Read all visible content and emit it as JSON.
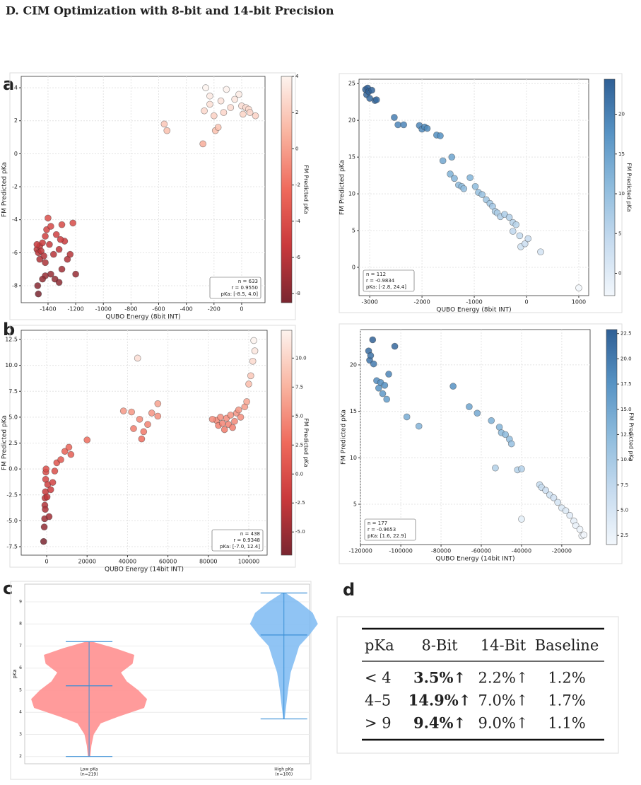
{
  "heading": "D.   CIM Optimization with 8-bit and 14-bit Precision",
  "panel_labels": [
    "a",
    "b",
    "c",
    "d"
  ],
  "chart_data": [
    {
      "type": "scatter",
      "xlabel": "QUBO Energy (8bit INT)",
      "ylabel": "FM Predicted pKa",
      "x": [
        -1480,
        -1470,
        -1460,
        -1450,
        -1440,
        -1430,
        -1420,
        -1410,
        -1400,
        -1390,
        -1380,
        -1360,
        -1340,
        -1320,
        -1300,
        -1280,
        -1260,
        -1240,
        -1220,
        -1200,
        -1300,
        -1350,
        -1380,
        -1420,
        -1470,
        -1475,
        -1440,
        -1310,
        -1460,
        -1480,
        -1420,
        -1320,
        -560,
        -540,
        -280,
        -270,
        -260,
        -230,
        -200,
        -190,
        -170,
        -150,
        -130,
        -110,
        -80,
        -50,
        -20,
        0,
        10,
        30,
        50,
        60,
        100,
        -230
      ],
      "values": [
        -5.8,
        -6.0,
        -5.6,
        -5.9,
        -5.4,
        -6.2,
        -5.0,
        -4.6,
        -3.9,
        -5.5,
        -4.4,
        -6.1,
        -4.9,
        -5.8,
        -4.3,
        -5.3,
        -6.4,
        -6.1,
        -4.2,
        -7.3,
        -7.0,
        -7.6,
        -7.3,
        -7.4,
        -8.5,
        -8.0,
        -7.6,
        -5.2,
        -6.4,
        -5.5,
        -6.6,
        -7.8,
        1.8,
        1.4,
        0.6,
        2.6,
        4.0,
        3.0,
        2.3,
        1.4,
        1.6,
        3.2,
        2.5,
        3.9,
        2.8,
        3.3,
        3.6,
        2.9,
        2.4,
        2.8,
        2.7,
        2.5,
        2.3,
        3.5
      ],
      "xlim": [
        -1594,
        169
      ],
      "ylim": [
        -9.03,
        4.69
      ],
      "xticks": [
        -1400,
        -1200,
        -1000,
        -800,
        -600,
        -400,
        -200,
        0
      ],
      "yticks": [
        -8,
        -6,
        -4,
        -2,
        0,
        2,
        4
      ],
      "grid": true,
      "colormap": [
        "#7a2630",
        "#c9393c",
        "#ef6a5c",
        "#f9b4a0",
        "#fdf3ee"
      ],
      "colorbar": {
        "label": "FM Predicted pKa",
        "lim": [
          -8.5,
          4.0
        ],
        "ticks": [
          -8,
          -6,
          -4,
          -2,
          0,
          2,
          4
        ]
      },
      "annotation": [
        "n = 633",
        "r = 0.9550",
        "pKa: [-8.5, 4.0]"
      ],
      "annotation_corner": "lower right"
    },
    {
      "type": "scatter",
      "xlabel": "QUBO Energy (8bit INT)",
      "ylabel": "FM Predicted pKa",
      "x": [
        -3080,
        -3060,
        -3040,
        -3020,
        -3000,
        -2960,
        -2900,
        -2870,
        -2530,
        -2460,
        -2350,
        -2050,
        -2000,
        -1950,
        -1900,
        -1720,
        -1650,
        -1600,
        -1460,
        -1430,
        -1380,
        -1300,
        -1240,
        -1200,
        -1080,
        -980,
        -920,
        -850,
        -770,
        -700,
        -650,
        -600,
        -560,
        -500,
        -420,
        -330,
        -260,
        -200,
        -260,
        -130,
        -110,
        -30,
        30,
        270,
        1000
      ],
      "values": [
        24.2,
        23.5,
        24.4,
        23.9,
        23.0,
        24.1,
        22.7,
        22.8,
        20.4,
        19.4,
        19.4,
        19.3,
        18.8,
        19.1,
        18.9,
        18.0,
        17.9,
        14.5,
        12.7,
        15.0,
        12.1,
        11.2,
        11.0,
        10.7,
        12.2,
        11.0,
        10.2,
        9.9,
        9.2,
        8.7,
        8.3,
        7.6,
        7.4,
        6.9,
        7.2,
        6.8,
        6.1,
        5.8,
        4.9,
        4.3,
        2.8,
        3.2,
        3.9,
        2.1,
        -2.8
      ],
      "xlim": [
        -3205,
        1190
      ],
      "ylim": [
        -3.85,
        25.6
      ],
      "xticks": [
        -3000,
        -2000,
        -1000,
        0,
        1000
      ],
      "yticks": [
        0,
        5,
        10,
        15,
        20,
        25
      ],
      "grid": true,
      "colormap": [
        "#f2f7fc",
        "#c6dbef",
        "#8fbcdd",
        "#5793c4",
        "#2f5f95"
      ],
      "colorbar": {
        "label": "FM Predicted pKa",
        "lim": [
          -2.8,
          24.4
        ],
        "ticks": [
          0,
          5,
          10,
          15,
          20
        ]
      },
      "annotation": [
        "n = 112",
        "r = -0.9834",
        "pKa: [-2.8, 24.4]"
      ],
      "annotation_corner": "lower left"
    },
    {
      "type": "scatter",
      "xlabel": "QUBO Energy (14bit INT)",
      "ylabel": "FM Predicted pKa",
      "x": [
        -1500,
        -1200,
        -1000,
        -900,
        -800,
        -700,
        -600,
        -500,
        -400,
        -300,
        200,
        500,
        1200,
        2000,
        3000,
        4000,
        5000,
        7000,
        9000,
        11000,
        12000,
        20000,
        38000,
        42000,
        43000,
        45000,
        46000,
        47000,
        48000,
        50000,
        52000,
        55000,
        55000,
        84000,
        85000,
        86000,
        87000,
        88000,
        89000,
        90000,
        91000,
        92000,
        93000,
        94000,
        95000,
        96000,
        98000,
        99000,
        100000,
        101000,
        102000,
        103000,
        102500,
        82000
      ],
      "values": [
        -7.0,
        -5.6,
        -4.8,
        -3.5,
        -2.8,
        -3.9,
        -2.2,
        -1.0,
        -0.3,
        0.0,
        -2.7,
        -1.5,
        -4.6,
        -2.0,
        -1.3,
        -0.2,
        0.6,
        0.9,
        1.7,
        2.1,
        1.4,
        2.8,
        5.6,
        5.5,
        3.9,
        10.7,
        4.8,
        2.9,
        3.6,
        4.3,
        5.4,
        5.1,
        6.3,
        4.7,
        4.2,
        5.0,
        4.4,
        3.8,
        4.9,
        4.3,
        5.2,
        4.0,
        4.6,
        5.4,
        5.7,
        5.0,
        6.0,
        6.5,
        8.2,
        9.0,
        10.4,
        11.4,
        12.4,
        4.8
      ],
      "xlim": [
        -12600,
        109100
      ],
      "ylim": [
        -8.32,
        13.39
      ],
      "xticks": [
        0,
        20000,
        40000,
        60000,
        80000,
        100000
      ],
      "yticks": [
        {
          "value": -7.5,
          "label": "-7.5"
        },
        {
          "value": -5,
          "label": "-5.0"
        },
        {
          "value": -2.5,
          "label": "-2.5"
        },
        {
          "value": 0,
          "label": "0.0"
        },
        {
          "value": 2.5,
          "label": "2.5"
        },
        {
          "value": 5,
          "label": "5.0"
        },
        {
          "value": 7.5,
          "label": "7.5"
        },
        {
          "value": 10,
          "label": "10.0"
        },
        {
          "value": 12.5,
          "label": "12.5"
        }
      ],
      "grid": true,
      "colormap": [
        "#7a2630",
        "#c9393c",
        "#ef6a5c",
        "#f9b4a0",
        "#fdf3ee"
      ],
      "colorbar": {
        "label": "FM Predicted pKa",
        "lim": [
          -7.0,
          12.4
        ],
        "ticks": [
          {
            "value": -5,
            "label": "-5.0"
          },
          {
            "value": -2.5,
            "label": "-2.5"
          },
          {
            "value": 0,
            "label": "0.0"
          },
          {
            "value": 2.5,
            "label": "2.5"
          },
          {
            "value": 5,
            "label": "5.0"
          },
          {
            "value": 7.5,
            "label": "7.5"
          },
          {
            "value": 10,
            "label": "10.0"
          }
        ]
      },
      "annotation": [
        "n = 438",
        "r = 0.9348",
        "pKa: [-7.0, 12.4]"
      ],
      "annotation_corner": "lower right"
    },
    {
      "type": "scatter",
      "xlabel": "QUBO Energy (14bit INT)",
      "ylabel": "FM Predicted pKa",
      "x": [
        -116000,
        -115500,
        -115000,
        -114000,
        -113500,
        -112000,
        -111000,
        -110000,
        -109000,
        -108000,
        -107000,
        -106000,
        -103000,
        -97000,
        -91000,
        -74000,
        -66000,
        -62000,
        -55000,
        -53000,
        -51000,
        -50000,
        -48000,
        -46000,
        -45000,
        -42000,
        -40000,
        -40000,
        -31000,
        -30000,
        -28000,
        -26000,
        -24000,
        -22000,
        -20000,
        -18000,
        -16000,
        -14000,
        -13000,
        -11000,
        -10000,
        -9000
      ],
      "values": [
        21.5,
        20.5,
        21.0,
        22.7,
        20.1,
        18.3,
        17.5,
        18.1,
        16.9,
        17.8,
        16.3,
        19.0,
        22.0,
        14.4,
        13.4,
        17.7,
        15.5,
        14.8,
        14.0,
        8.9,
        13.3,
        12.7,
        12.5,
        12.0,
        11.5,
        8.7,
        8.8,
        3.4,
        7.1,
        6.8,
        6.5,
        6.0,
        5.7,
        5.2,
        4.6,
        4.3,
        3.8,
        3.2,
        2.7,
        2.3,
        1.6,
        1.7
      ],
      "xlim": [
        -120070,
        -5900
      ],
      "ylim": [
        0.66,
        23.8
      ],
      "xticks": [
        -120000,
        -100000,
        -80000,
        -60000,
        -40000,
        -20000
      ],
      "yticks": [
        5,
        10,
        15,
        20
      ],
      "grid": true,
      "colormap": [
        "#f2f7fc",
        "#c6dbef",
        "#8fbcdd",
        "#5793c4",
        "#2f5f95"
      ],
      "colorbar": {
        "label": "FM Predicted pKa",
        "lim": [
          1.6,
          22.9
        ],
        "ticks": [
          2.5,
          {
            "value": 5,
            "label": "5.0"
          },
          7.5,
          {
            "value": 10,
            "label": "10.0"
          },
          12.5,
          {
            "value": 15,
            "label": "15.0"
          },
          17.5,
          {
            "value": 20,
            "label": "20.0"
          },
          22.5
        ]
      },
      "annotation": [
        "n = 177",
        "r = -0.9653",
        "pKa: [1.6, 22.9]"
      ],
      "annotation_corner": "lower left"
    },
    {
      "type": "violin",
      "ylabel": "pKa",
      "ylim": [
        1.67,
        9.8
      ],
      "yticks": [
        2,
        3,
        4,
        5,
        6,
        7,
        8,
        9
      ],
      "grid": true,
      "violins": [
        {
          "label": "Low pKa",
          "sublabel": "(n=219)",
          "color": "#ff8a8a",
          "min": 2.0,
          "median": 5.2,
          "max": 7.2,
          "profile_y": [
            2.0,
            2.5,
            3.0,
            3.5,
            3.8,
            4.2,
            4.6,
            5.0,
            5.4,
            5.8,
            6.2,
            6.6,
            6.9,
            7.2
          ],
          "profile_width": [
            0.02,
            0.04,
            0.08,
            0.2,
            0.5,
            0.95,
            1.0,
            0.85,
            0.65,
            0.55,
            0.75,
            0.78,
            0.45,
            0.05
          ]
        },
        {
          "label": "High pKa",
          "sublabel": "(n=100)",
          "color": "#7dbaf2",
          "min": 3.7,
          "median": 7.5,
          "max": 9.4,
          "profile_y": [
            3.7,
            4.2,
            5.0,
            5.8,
            6.5,
            7.0,
            7.5,
            8.0,
            8.5,
            9.0,
            9.4
          ],
          "profile_width": [
            0.04,
            0.12,
            0.24,
            0.4,
            0.7,
            0.9,
            1.5,
            2.0,
            1.7,
            0.9,
            0.1
          ]
        }
      ],
      "line_color": "#3a8fd6"
    }
  ],
  "table": {
    "header": [
      "pKa",
      "8-Bit",
      "14-Bit",
      "Baseline"
    ],
    "rows": [
      [
        "< 4",
        "3.5%↑",
        "2.2%↑",
        "1.2%"
      ],
      [
        "4–5",
        "14.9%↑",
        "7.0%↑",
        "1.7%"
      ],
      [
        "> 9",
        "9.4%↑",
        "9.0%↑",
        "1.1%"
      ]
    ],
    "bold_column": 1
  }
}
